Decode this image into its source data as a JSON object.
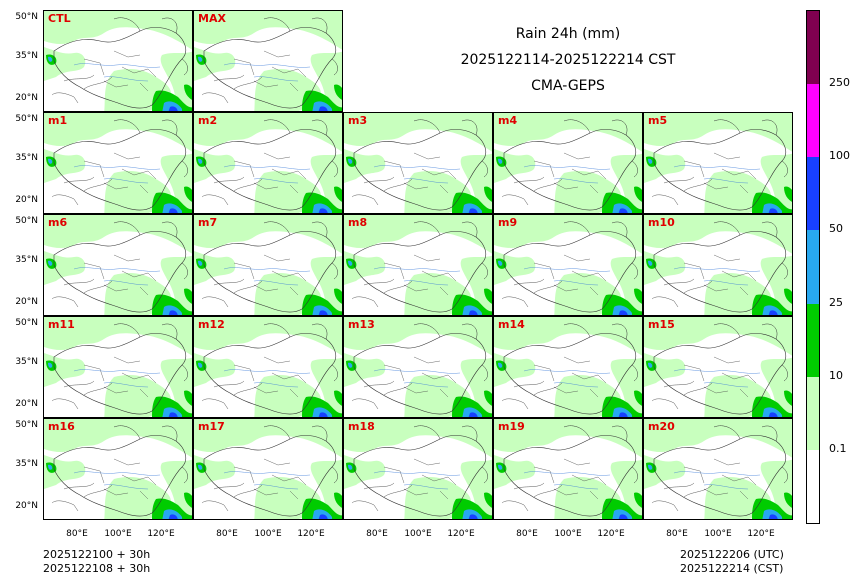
{
  "titles": {
    "line1": "Rain 24h (mm)",
    "line2": "2025122114-2025122214 CST",
    "line3": "CMA-GEPS"
  },
  "panels": [
    "CTL",
    "MAX",
    "m1",
    "m2",
    "m3",
    "m4",
    "m5",
    "m6",
    "m7",
    "m8",
    "m9",
    "m10",
    "m11",
    "m12",
    "m13",
    "m14",
    "m15",
    "m16",
    "m17",
    "m18",
    "m19",
    "m20"
  ],
  "lat_labels": [
    "50°N",
    "35°N",
    "20°N"
  ],
  "lon_labels": [
    "80°E",
    "100°E",
    "120°E"
  ],
  "colorbar": {
    "levels": [
      {
        "threshold": "0.1",
        "color": "#ffffff"
      },
      {
        "threshold": "10",
        "color": "#c8ffbe"
      },
      {
        "threshold": "25",
        "color": "#00cc00"
      },
      {
        "threshold": "50",
        "color": "#28a8f0"
      },
      {
        "threshold": "100",
        "color": "#1840ff"
      },
      {
        "threshold": "250",
        "color": "#ff00ff"
      },
      {
        "threshold": "",
        "color": "#800050"
      }
    ],
    "labels": [
      "0.1",
      "10",
      "25",
      "50",
      "100",
      "250"
    ]
  },
  "footer": {
    "left_line1": "2025122100 + 30h",
    "left_line2": "2025122108 + 30h",
    "right_line1": "2025122206 (UTC)",
    "right_line2": "2025122214 (CST)"
  }
}
